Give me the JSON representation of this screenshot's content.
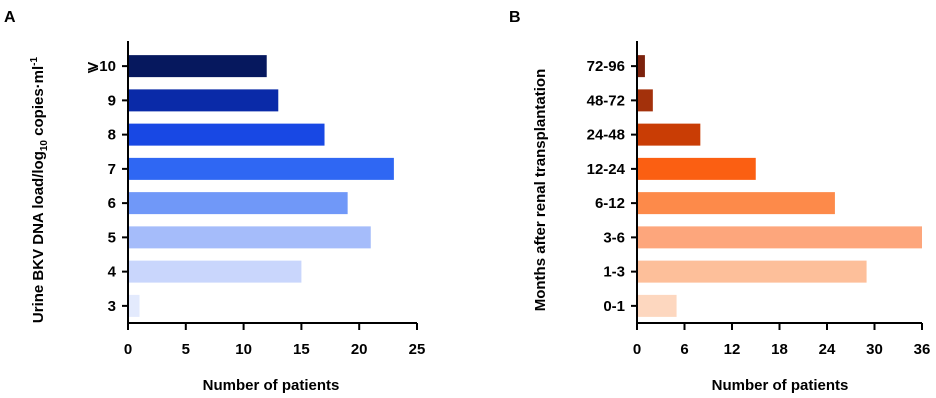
{
  "chart_data": [
    {
      "panel": "A",
      "type": "bar",
      "orientation": "horizontal",
      "categories": [
        "3",
        "4",
        "5",
        "6",
        "7",
        "8",
        "9",
        "⩾10"
      ],
      "values": [
        1,
        15,
        21,
        19,
        23,
        17,
        13,
        12
      ],
      "colors": [
        "#e3eafd",
        "#c9d6fc",
        "#a5bcfa",
        "#7098f8",
        "#2f67f3",
        "#1848e4",
        "#0a2aa8",
        "#06185e"
      ],
      "xlabel": "Number of patients",
      "ylabel": {
        "prefix": "Urine BKV DNA load/log",
        "sub": "10",
        "suffix": " copies·ml",
        "sup": "-1"
      },
      "xlim": [
        0,
        25
      ],
      "xticks": [
        0,
        5,
        10,
        15,
        20,
        25
      ],
      "grid": false,
      "legend": "none"
    },
    {
      "panel": "B",
      "type": "bar",
      "orientation": "horizontal",
      "categories": [
        "0-1",
        "1-3",
        "3-6",
        "6-12",
        "12-24",
        "24-48",
        "48-72",
        "72-96"
      ],
      "values": [
        5,
        29,
        36,
        25,
        15,
        8,
        2,
        1
      ],
      "colors": [
        "#fdd7bf",
        "#fdbf9a",
        "#fda67c",
        "#fd8a4a",
        "#fb5f12",
        "#c93d05",
        "#a3310b",
        "#7c220d"
      ],
      "xlabel": "Number of patients",
      "ylabel": "Months after renal transplantation",
      "xlim": [
        0,
        36
      ],
      "xticks": [
        0,
        6,
        12,
        18,
        24,
        30,
        36
      ],
      "grid": false,
      "legend": "none"
    }
  ]
}
